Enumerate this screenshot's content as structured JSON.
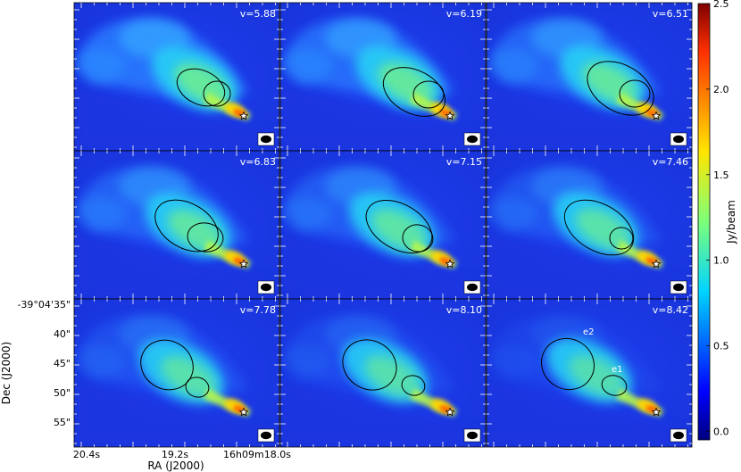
{
  "chart_data": {
    "type": "heatmap",
    "layout": "3x3 channel maps",
    "panels": [
      {
        "velocity": 5.88,
        "label": "v=5.88"
      },
      {
        "velocity": 6.19,
        "label": "v=6.19"
      },
      {
        "velocity": 6.51,
        "label": "v=6.51"
      },
      {
        "velocity": 6.83,
        "label": "v=6.83"
      },
      {
        "velocity": 7.15,
        "label": "v=7.15"
      },
      {
        "velocity": 7.46,
        "label": "v=7.46"
      },
      {
        "velocity": 7.78,
        "label": "v=7.78"
      },
      {
        "velocity": 8.1,
        "label": "v=8.10"
      },
      {
        "velocity": 8.42,
        "label": "v=8.42"
      }
    ],
    "xlabel": "RA (J2000)",
    "ylabel": "Dec (J2000)",
    "x_ticks": [
      "20.4s",
      "19.2s",
      "16h09m18.0s"
    ],
    "y_ticks": [
      "-39°04'35\"",
      "40\"",
      "45\"",
      "50\"",
      "55\""
    ],
    "colorbar": {
      "label": "Jy/beam",
      "range": [
        -0.05,
        2.5
      ],
      "ticks": [
        "0.0",
        "0.5",
        "1.0",
        "1.5",
        "2.0",
        "2.5"
      ],
      "colormap": "jet"
    },
    "annotations": [
      "e2",
      "e1"
    ],
    "markers": [
      "star-icon",
      "beam-ellipse"
    ]
  }
}
